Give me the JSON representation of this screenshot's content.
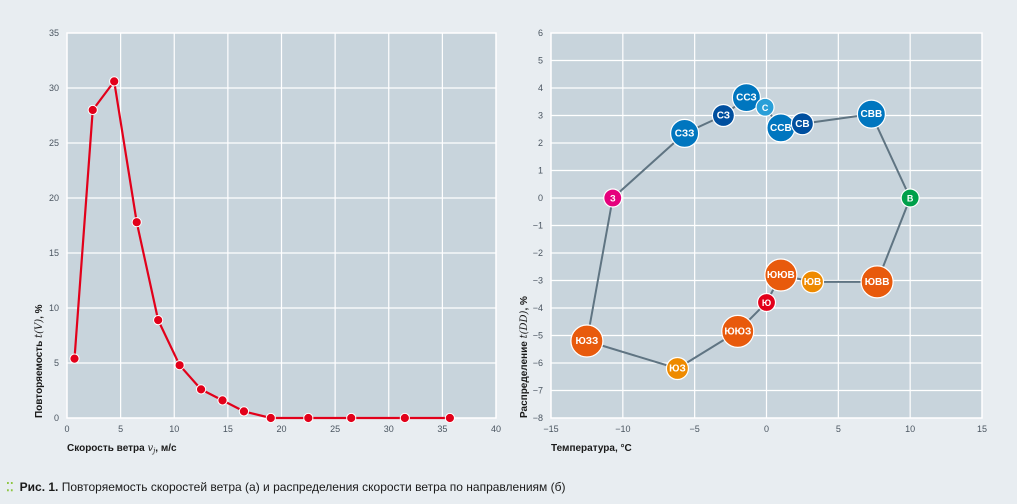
{
  "caption": {
    "prefix": "Рис. 1.",
    "text": "Повторяемость скоростей ветра (а) и распределения скорости ветра по направлениям (б)"
  },
  "colors": {
    "background": "#e8edf1",
    "plot_bg": "#c8d4dc",
    "grid": "#ffffff",
    "line_a": "#e2001a",
    "line_b": "#5f7482",
    "caption_bullet": "#8cc63f"
  },
  "chart_data": [
    {
      "type": "line",
      "title": "",
      "xlabel": "Скорость ветра",
      "xlabel_var": "vj",
      "xlabel_unit": ", м/с",
      "ylabel": "Повторяемость",
      "ylabel_var": "t(V)",
      "ylabel_unit": ", %",
      "xlim": [
        0,
        40
      ],
      "ylim": [
        0,
        35
      ],
      "xticks": [
        "0",
        "5",
        "10",
        "15",
        "20",
        "25",
        "30",
        "35",
        "40"
      ],
      "yticks": [
        "0",
        "5",
        "10",
        "15",
        "20",
        "25",
        "30",
        "35"
      ],
      "grid": true,
      "series": [
        {
          "name": "t(V)",
          "color": "#e2001a",
          "x": [
            0.7,
            2.4,
            4.4,
            6.5,
            8.5,
            10.5,
            12.5,
            14.5,
            16.5,
            19.0,
            22.5,
            26.5,
            31.5,
            35.7
          ],
          "y": [
            5.4,
            28.0,
            30.6,
            17.8,
            8.9,
            4.8,
            2.6,
            1.6,
            0.6,
            0.0,
            0.0,
            0.0,
            0.0,
            0.0
          ]
        }
      ]
    },
    {
      "type": "scatter",
      "title": "",
      "xlabel": "Температура, °С",
      "ylabel": "Распределение",
      "ylabel_var": "t(DD)",
      "ylabel_unit": ", %",
      "xlim": [
        -15,
        15
      ],
      "ylim": [
        -8,
        6
      ],
      "xticks": [
        "−15",
        "−10",
        "−5",
        "0",
        "5",
        "10",
        "15"
      ],
      "yticks": [
        "6",
        "5",
        "4",
        "3",
        "2",
        "1",
        "0",
        "−1",
        "−2",
        "−3",
        "−4",
        "−5",
        "−6",
        "−7",
        "−8"
      ],
      "grid": true,
      "connected": true,
      "points": [
        {
          "label": "З",
          "x": -10.7,
          "y": 0.0,
          "color": "#e5007d",
          "size": "s"
        },
        {
          "label": "СЗЗ",
          "x": -5.7,
          "y": 2.35,
          "color": "#0076bf",
          "size": "l"
        },
        {
          "label": "СЗ",
          "x": -3.0,
          "y": 3.0,
          "color": "#004f9f",
          "size": "m"
        },
        {
          "label": "ССЗ",
          "x": -1.4,
          "y": 3.65,
          "color": "#0076bf",
          "size": "l"
        },
        {
          "label": "С",
          "x": -0.1,
          "y": 3.3,
          "color": "#2a9fd8",
          "size": "s"
        },
        {
          "label": "ССВ",
          "x": 1.0,
          "y": 2.55,
          "color": "#0076bf",
          "size": "l"
        },
        {
          "label": "СВ",
          "x": 2.5,
          "y": 2.7,
          "color": "#004f9f",
          "size": "m"
        },
        {
          "label": "СВВ",
          "x": 7.3,
          "y": 3.05,
          "color": "#0076bf",
          "size": "l"
        },
        {
          "label": "В",
          "x": 10.0,
          "y": 0.0,
          "color": "#00a04a",
          "size": "s"
        },
        {
          "label": "ЮВВ",
          "x": 7.7,
          "y": -3.05,
          "color": "#e85a0c",
          "size": "xl"
        },
        {
          "label": "ЮВ",
          "x": 3.2,
          "y": -3.05,
          "color": "#ee8a00",
          "size": "m"
        },
        {
          "label": "ЮЮВ",
          "x": 1.0,
          "y": -2.8,
          "color": "#e85a0c",
          "size": "xl"
        },
        {
          "label": "Ю",
          "x": 0.0,
          "y": -3.8,
          "color": "#e2001a",
          "size": "s"
        },
        {
          "label": "ЮЮЗ",
          "x": -2.0,
          "y": -4.85,
          "color": "#e85a0c",
          "size": "xl"
        },
        {
          "label": "ЮЗ",
          "x": -6.2,
          "y": -6.2,
          "color": "#ee8a00",
          "size": "m"
        },
        {
          "label": "ЮЗЗ",
          "x": -12.5,
          "y": -5.2,
          "color": "#e85a0c",
          "size": "xl"
        }
      ]
    }
  ]
}
